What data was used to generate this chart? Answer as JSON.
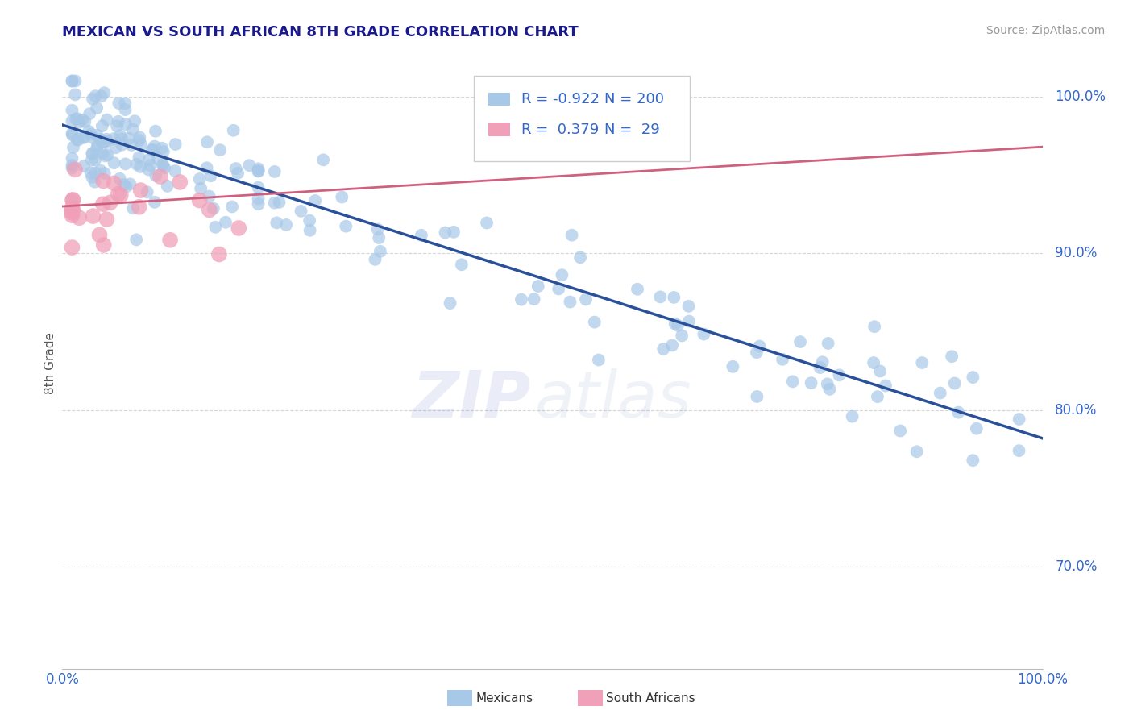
{
  "title": "MEXICAN VS SOUTH AFRICAN 8TH GRADE CORRELATION CHART",
  "source_text": "Source: ZipAtlas.com",
  "ylabel": "8th Grade",
  "y_ticks": [
    0.7,
    0.8,
    0.9,
    1.0
  ],
  "y_tick_labels": [
    "70.0%",
    "80.0%",
    "90.0%",
    "100.0%"
  ],
  "x_range": [
    0.0,
    1.0
  ],
  "y_range": [
    0.635,
    1.025
  ],
  "blue_R": -0.922,
  "blue_N": 200,
  "pink_R": 0.379,
  "pink_N": 29,
  "blue_color": "#a8c8e8",
  "blue_line_color": "#2a5099",
  "pink_color": "#f0a0b8",
  "pink_line_color": "#d06080",
  "title_color": "#1a1a8c",
  "legend_text_color": "#3366cc",
  "background_color": "#ffffff",
  "grid_color": "#cccccc",
  "blue_trend_x": [
    0.0,
    1.0
  ],
  "blue_trend_y": [
    0.982,
    0.782
  ],
  "pink_trend_x": [
    0.0,
    1.0
  ],
  "pink_trend_y": [
    0.93,
    0.968
  ]
}
